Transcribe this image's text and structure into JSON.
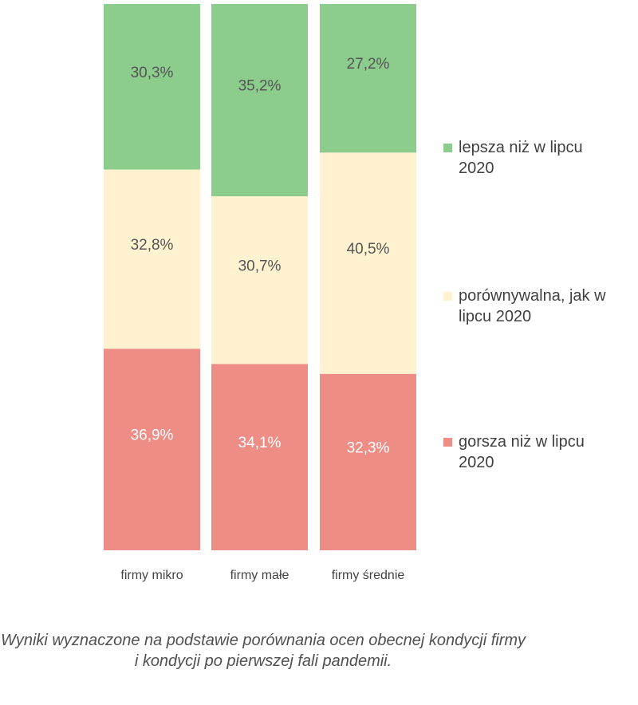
{
  "chart_data": {
    "type": "bar",
    "stacked": true,
    "normalized": true,
    "categories": [
      "firmy mikro",
      "firmy małe",
      "firmy średnie"
    ],
    "series": [
      {
        "name": "gorsza niż w lipcu 2020",
        "values": [
          36.9,
          34.1,
          32.3
        ],
        "labels": [
          "36,9%",
          "34,1%",
          "32,3%"
        ],
        "color": "#ee8d85",
        "label_color": "#ffffff"
      },
      {
        "name": "porównywalna, jak w lipcu 2020",
        "values": [
          32.8,
          30.7,
          40.5
        ],
        "labels": [
          "32,8%",
          "30,7%",
          "40,5%"
        ],
        "color": "#fff2d0",
        "label_color": "#555555"
      },
      {
        "name": "lepsza niż w lipcu 2020",
        "values": [
          30.3,
          35.2,
          27.2
        ],
        "labels": [
          "30,3%",
          "35,2%",
          "27,2%"
        ],
        "color": "#8ccc8c",
        "label_color": "#555555"
      }
    ],
    "ylim": [
      0,
      100
    ],
    "legend_position": "right",
    "grid": false
  },
  "legend": [
    {
      "text": "lepsza niż w lipcu 2020",
      "color": "#8ccc8c"
    },
    {
      "text": "porównywalna, jak w lipcu 2020",
      "color": "#fff2d0"
    },
    {
      "text": "gorsza niż w lipcu 2020",
      "color": "#ee8d85"
    }
  ],
  "caption": "Wyniki wyznaczone na podstawie porównania ocen obecnej kondycji firmy i kondycji po pierwszej fali pandemii."
}
